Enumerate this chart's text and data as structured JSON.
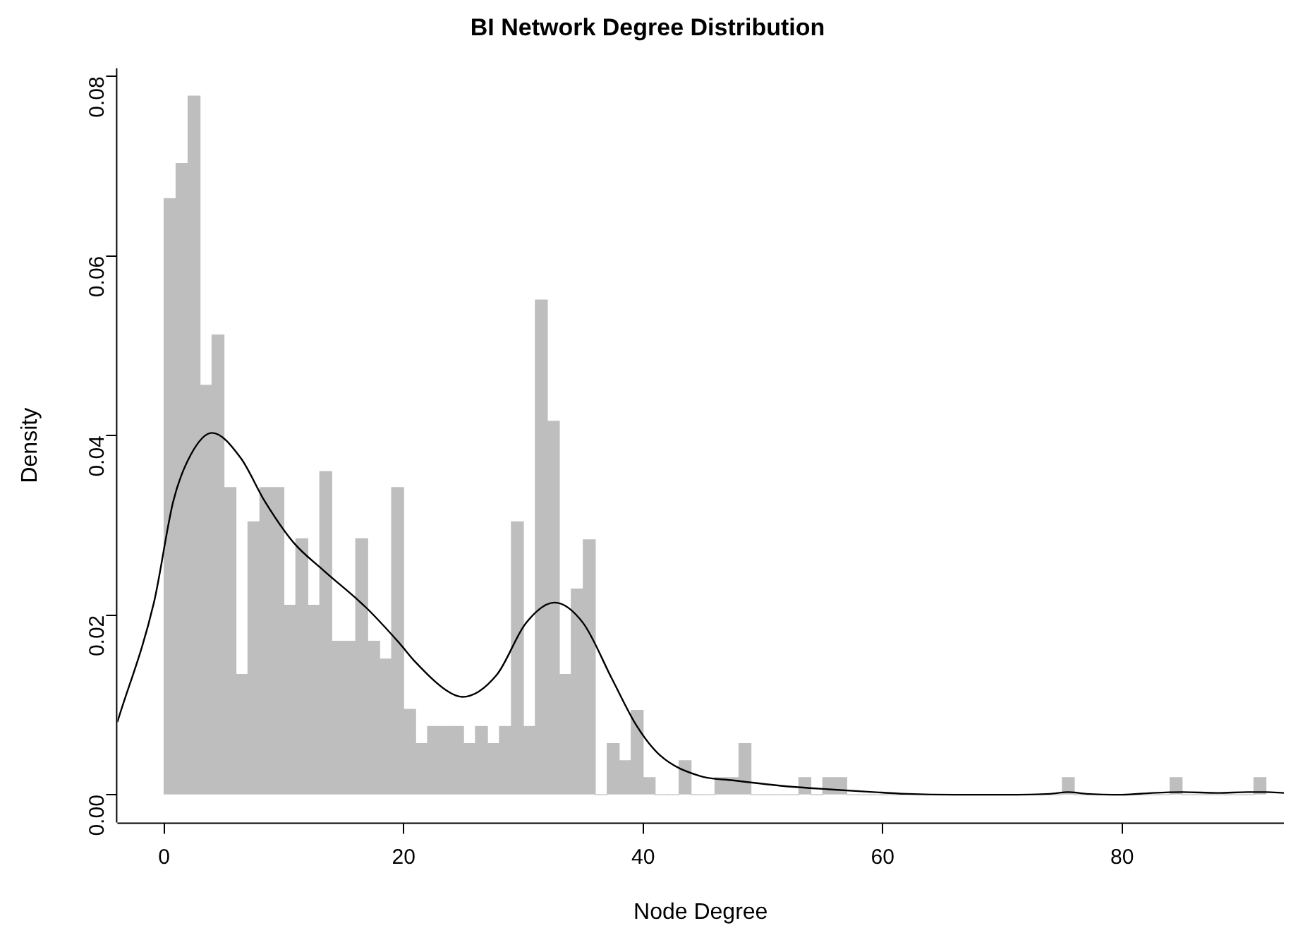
{
  "chart_data": {
    "type": "histogram",
    "title": "BI Network Degree Distribution",
    "xlabel": "Node Degree",
    "ylabel": "Density",
    "bins": [
      0,
      1,
      2,
      3,
      4,
      5,
      6,
      7,
      8,
      9,
      10,
      11,
      12,
      13,
      14,
      15,
      16,
      17,
      18,
      19,
      20,
      21,
      22,
      23,
      24,
      25,
      26,
      27,
      28,
      29,
      30,
      31,
      32,
      33,
      34,
      35,
      36,
      37,
      38,
      39,
      40,
      41,
      42,
      43,
      44,
      45,
      46,
      47,
      48,
      49,
      50,
      51,
      52,
      53,
      54,
      55,
      56,
      57,
      58,
      59,
      60,
      61,
      62,
      63,
      64,
      65,
      66,
      67,
      68,
      69,
      70,
      71,
      72,
      73,
      74,
      75,
      76,
      77,
      78,
      79,
      80,
      81,
      82,
      83,
      84,
      85,
      86,
      87,
      88,
      89,
      90,
      91,
      92
    ],
    "series": [
      {
        "color": "#bebebe",
        "values": [
          0.0664,
          0.0703,
          0.0778,
          0.0456,
          0.0512,
          0.0342,
          0.0134,
          0.0304,
          0.0342,
          0.0342,
          0.0211,
          0.0285,
          0.0211,
          0.036,
          0.0171,
          0.0171,
          0.0285,
          0.0171,
          0.0151,
          0.0342,
          0.0095,
          0.0057,
          0.0076,
          0.0076,
          0.0076,
          0.0057,
          0.0076,
          0.0057,
          0.0076,
          0.0304,
          0.0076,
          0.0551,
          0.0416,
          0.0134,
          0.0229,
          0.0284,
          0,
          0.0057,
          0.0038,
          0.0094,
          0.0019,
          0,
          0,
          0.0038,
          0,
          0,
          0.0019,
          0.0019,
          0.0057,
          0,
          0,
          0,
          0,
          0.0019,
          0,
          0.0019,
          0.0019,
          0,
          0,
          0,
          0,
          0,
          0,
          0,
          0,
          0,
          0,
          0,
          0,
          0,
          0,
          0,
          0,
          0,
          0,
          0.0019,
          0,
          0,
          0,
          0,
          0,
          0,
          0,
          0,
          0.0019,
          0,
          0,
          0,
          0,
          0,
          0,
          0.0019
        ]
      },
      {
        "type": "line",
        "color": "#000000",
        "x": [
          -3.9,
          -0.85,
          0.77,
          2.2,
          4.0,
          6.4,
          8.4,
          10.8,
          13.3,
          16.9,
          19.7,
          20.9,
          23.7,
          24.9,
          27.8,
          30.2,
          32.6,
          35.0,
          37.4,
          39.4,
          41.4,
          44.7,
          47.5,
          51.5,
          55.5,
          59.2,
          62,
          66,
          70,
          74,
          75.5,
          77,
          80,
          82.5,
          85,
          88,
          90.5,
          92,
          93.5
        ],
        "values": [
          0.0081,
          0.0214,
          0.0327,
          0.0378,
          0.0403,
          0.0375,
          0.0327,
          0.0281,
          0.025,
          0.0208,
          0.0168,
          0.0149,
          0.0115,
          0.0109,
          0.0134,
          0.0191,
          0.0214,
          0.0191,
          0.0129,
          0.0078,
          0.0044,
          0.0021,
          0.0016,
          0.001,
          0.0006,
          0.0003,
          0.0001,
          0,
          0,
          0.0001,
          0.0003,
          0.0001,
          0,
          0.0002,
          0.0003,
          0.0002,
          0.0003,
          0.0003,
          0.0002
        ]
      }
    ],
    "marker": "none",
    "xlim": [
      -3.9,
      93.5
    ],
    "xticks": [
      0,
      20,
      40,
      60,
      80
    ],
    "ylim": [
      -0.0031,
      0.0809
    ],
    "yticks": [
      {
        "value": 0,
        "label": "0.00"
      },
      {
        "value": 0.02,
        "label": "0.02"
      },
      {
        "value": 0.04,
        "label": "0.04"
      },
      {
        "value": 0.06,
        "label": "0.06"
      },
      {
        "value": 0.08,
        "label": "0.08"
      }
    ],
    "grid": false,
    "legend": false
  }
}
